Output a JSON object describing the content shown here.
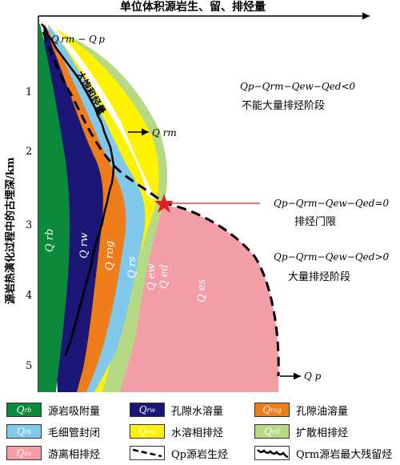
{
  "diagram": {
    "x_axis_title": "单位体积源岩生、留、排烃量",
    "y_axis_title": "源岩热演化过程中的古埋深/km",
    "y_ticks": [
      "1",
      "2",
      "3",
      "4",
      "5"
    ],
    "top_label": "Q rm − Q p",
    "oversaturated_label": "大饱和烃量",
    "qrm_arrow_label": "Q rm",
    "qp_arrow_label": "Q p",
    "zone1_formula": "Qp−Qrm−Qew−Qed<0",
    "zone1_text": "不能大量排烃阶段",
    "threshold_formula": "Qp−Qrm−Qew−Qed=0",
    "threshold_text": "排烃门限",
    "zone3_formula": "Qp−Qrm−Qew−Qed>0",
    "zone3_text": "大量排烃阶段",
    "region_labels": {
      "rb": "Q rb",
      "rw": "Q rw",
      "rog": "Q rog",
      "rs": "Q rs",
      "ew": "Q ew",
      "ed": "Q ed",
      "es": "Q es"
    }
  },
  "colors": {
    "rb": "#0a8a3a",
    "rw": "#1c1676",
    "rog": "#ee7d1a",
    "rs": "#80c8ec",
    "ew": "#fff200",
    "ed": "#b6d985",
    "es": "#f39ea6",
    "star": "#e41e1e",
    "threshold_line": "#e41e1e"
  },
  "legend": [
    {
      "sym": "Q",
      "sub": "rb",
      "label": "源岩吸附量",
      "color": "#0a8a3a",
      "text_color": "#ffffff"
    },
    {
      "sym": "Q",
      "sub": "rw",
      "label": "孔隙水溶量",
      "color": "#1c1676",
      "text_color": "#ffffff"
    },
    {
      "sym": "Q",
      "sub": "rog",
      "label": "孔隙油溶量",
      "color": "#ee7d1a",
      "text_color": "#ffffff"
    },
    {
      "sym": "Q",
      "sub": "rs",
      "label": "毛细管封闭",
      "color": "#80c8ec",
      "text_color": "#ffffff"
    },
    {
      "sym": "Q",
      "sub": "ew",
      "label": "水溶相排烃",
      "color": "#fff200",
      "text_color": "#ffffff"
    },
    {
      "sym": "Q",
      "sub": "ed",
      "label": "扩散相排烃",
      "color": "#b6d985",
      "text_color": "#ffffff"
    },
    {
      "sym": "Q",
      "sub": "es",
      "label": "游离相排烃",
      "color": "#f39ea6",
      "text_color": "#ffffff"
    },
    {
      "sym": "",
      "sub": "",
      "label": "Qp源岩生烃",
      "color": "#ffffff",
      "text_color": "#000000",
      "line": "dashed"
    },
    {
      "sym": "",
      "sub": "",
      "label": "Qrm源岩最大残留烃",
      "color": "#ffffff",
      "text_color": "#000000",
      "line": "wavy"
    }
  ]
}
